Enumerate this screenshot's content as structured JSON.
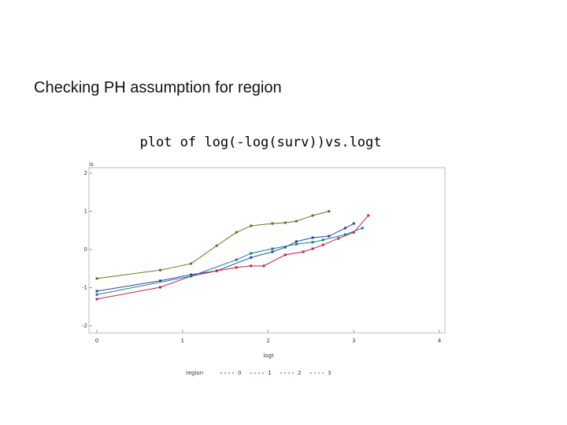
{
  "heading": "Checking PH assumption for region",
  "chart_data": {
    "type": "line",
    "title": "plot of log(-log(surv))vs.logt",
    "x_label": "logt",
    "y_label": "ls",
    "legend_title": "region",
    "xlim": [
      0,
      4
    ],
    "xticks": [
      0,
      1,
      2,
      3,
      4
    ],
    "ylim": [
      -2,
      2
    ],
    "yticks": [
      -2,
      -1,
      0,
      1,
      2
    ],
    "series": [
      {
        "name": "0",
        "color": "#2a3f9e",
        "x": [
          0,
          0.74,
          1.1,
          1.4,
          1.8,
          2.05,
          2.2,
          2.33,
          2.52,
          2.71,
          2.9,
          3.0
        ],
        "values": [
          -1.09,
          -0.82,
          -0.66,
          -0.56,
          -0.21,
          -0.06,
          0.06,
          0.21,
          0.31,
          0.35,
          0.56,
          0.68
        ]
      },
      {
        "name": "1",
        "color": "#c0244a",
        "x": [
          0,
          0.74,
          1.1,
          1.4,
          1.63,
          1.8,
          1.95,
          2.2,
          2.41,
          2.52,
          2.64,
          2.82,
          3.0,
          3.17
        ],
        "values": [
          -1.3,
          -0.99,
          -0.7,
          -0.56,
          -0.47,
          -0.43,
          -0.43,
          -0.14,
          -0.06,
          0.02,
          0.12,
          0.29,
          0.45,
          0.89
        ]
      },
      {
        "name": "2",
        "color": "#0e7f86",
        "x": [
          0,
          1.1,
          1.63,
          1.8,
          2.05,
          2.33,
          2.52,
          2.64,
          2.9,
          3.1
        ],
        "values": [
          -1.18,
          -0.7,
          -0.27,
          -0.1,
          0.02,
          0.14,
          0.19,
          0.25,
          0.39,
          0.56
        ]
      },
      {
        "name": "3",
        "color": "#6b6a1e",
        "x": [
          0,
          0.74,
          1.1,
          1.4,
          1.63,
          1.8,
          2.05,
          2.2,
          2.33,
          2.52,
          2.71
        ],
        "values": [
          -0.76,
          -0.54,
          -0.37,
          0.1,
          0.45,
          0.62,
          0.68,
          0.7,
          0.74,
          0.89,
          1.0
        ]
      }
    ]
  }
}
